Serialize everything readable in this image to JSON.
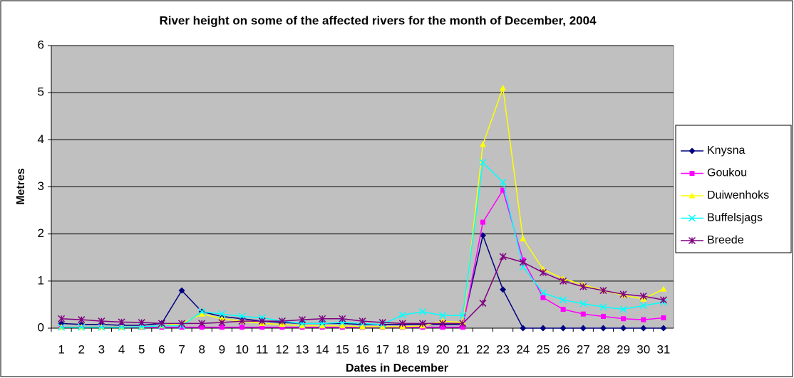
{
  "chart_data": {
    "type": "line",
    "title": "River height on some of the affected rivers for the month of December, 2004",
    "x_label": "Dates in December",
    "y_label": "Metres",
    "categories": [
      "1",
      "2",
      "3",
      "4",
      "5",
      "6",
      "7",
      "8",
      "9",
      "10",
      "11",
      "12",
      "13",
      "14",
      "15",
      "16",
      "17",
      "18",
      "19",
      "20",
      "21",
      "22",
      "23",
      "24",
      "25",
      "26",
      "27",
      "28",
      "29",
      "30",
      "31"
    ],
    "ylim": [
      0,
      6
    ],
    "yticks": [
      0,
      1,
      2,
      3,
      4,
      5,
      6
    ],
    "grid": true,
    "legend": "right",
    "series": [
      {
        "name": "Knysna",
        "color": "#000080",
        "marker": "diamond",
        "values": [
          0.1,
          0.08,
          0.08,
          0.06,
          0.06,
          0.1,
          0.8,
          0.35,
          0.25,
          0.2,
          0.15,
          0.12,
          0.1,
          0.1,
          0.1,
          0.08,
          0.08,
          0.08,
          0.08,
          0.08,
          0.08,
          1.97,
          0.82,
          0,
          0,
          0,
          0,
          0,
          0,
          0,
          0
        ]
      },
      {
        "name": "Goukou",
        "color": "#ff00ff",
        "marker": "square",
        "values": [
          0.02,
          0.02,
          0.02,
          0.02,
          0.02,
          0.02,
          0.02,
          0.02,
          0.02,
          0.02,
          0.02,
          0.02,
          0.02,
          0.02,
          0.02,
          0.02,
          0.02,
          0.02,
          0.02,
          0.02,
          0.02,
          2.25,
          2.93,
          1.45,
          0.65,
          0.4,
          0.3,
          0.25,
          0.2,
          0.18,
          0.22
        ]
      },
      {
        "name": "Duiwenhoks",
        "color": "#ffff00",
        "marker": "triangle",
        "values": [
          0.02,
          0.02,
          0.02,
          0.02,
          0.03,
          0.05,
          0.1,
          0.3,
          0.2,
          0.15,
          0.1,
          0.08,
          0.05,
          0.05,
          0.05,
          0.03,
          0.03,
          0.03,
          0.05,
          0.15,
          0.12,
          3.9,
          5.1,
          1.9,
          1.25,
          1.05,
          0.92,
          0.8,
          0.7,
          0.62,
          0.83
        ]
      },
      {
        "name": "Buffelsjags",
        "color": "#00ffff",
        "marker": "x",
        "values": [
          0.02,
          0.02,
          0.02,
          0.02,
          0.03,
          0.05,
          0.05,
          0.35,
          0.3,
          0.25,
          0.22,
          0.15,
          0.1,
          0.1,
          0.12,
          0.1,
          0.08,
          0.28,
          0.35,
          0.27,
          0.27,
          3.52,
          3.1,
          1.3,
          0.75,
          0.6,
          0.52,
          0.45,
          0.4,
          0.48,
          0.55
        ]
      },
      {
        "name": "Breede",
        "color": "#800080",
        "marker": "star",
        "values": [
          0.2,
          0.18,
          0.15,
          0.13,
          0.12,
          0.1,
          0.1,
          0.1,
          0.12,
          0.15,
          0.15,
          0.15,
          0.18,
          0.2,
          0.2,
          0.15,
          0.12,
          0.1,
          0.1,
          0.1,
          0.1,
          0.53,
          1.52,
          1.4,
          1.18,
          1.0,
          0.88,
          0.8,
          0.72,
          0.68,
          0.6
        ]
      }
    ]
  }
}
